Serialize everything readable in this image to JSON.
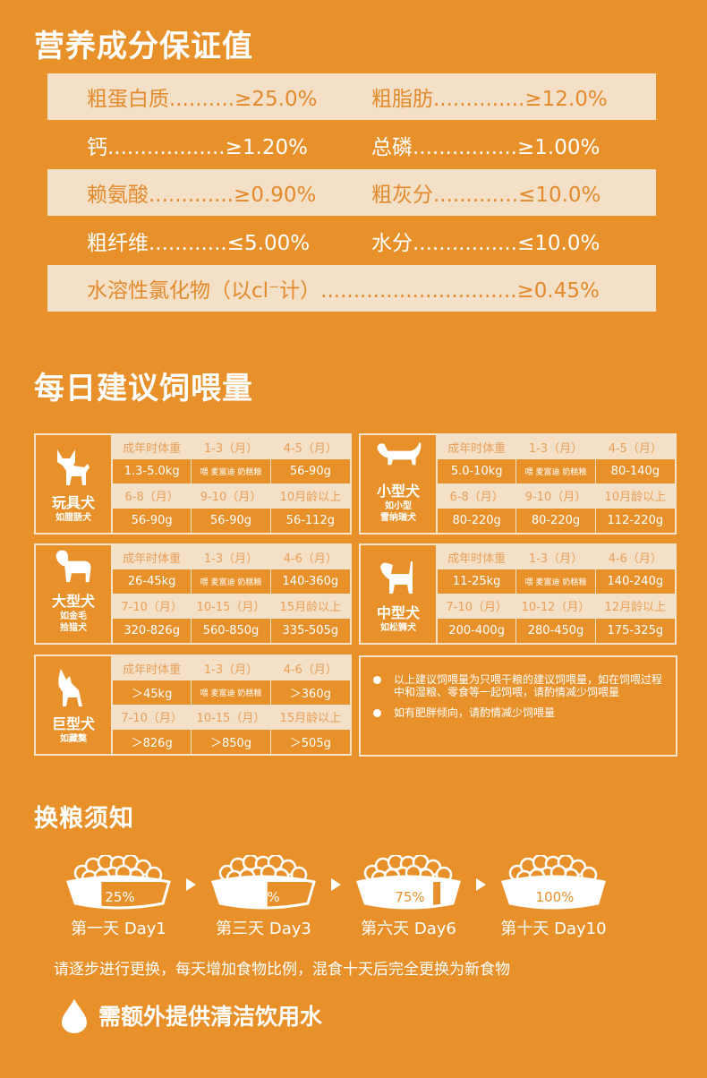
{
  "nutrition": {
    "title": "营养成分保证值",
    "rows": [
      {
        "style": "light",
        "cells": [
          "粗蛋白质..........≥25.0%",
          "粗脂肪..............≥12.0%"
        ]
      },
      {
        "style": "dark",
        "cells": [
          "钙..................≥1.20%",
          "总磷................≥1.00%"
        ]
      },
      {
        "style": "light",
        "cells": [
          "赖氨酸.............≥0.90%",
          "粗灰分.............≤10.0%"
        ]
      },
      {
        "style": "dark",
        "cells": [
          "粗纤维............≤5.00%",
          "水分................≤10.0%"
        ]
      },
      {
        "style": "light",
        "cells": [
          "水溶性氯化物（以cl⁻计）..............................≥0.45%"
        ]
      }
    ]
  },
  "feeding": {
    "title": "每日建议饲喂量",
    "brand_text": "喂 麦富迪 奶糕粮",
    "cards": [
      {
        "name": "玩具犬",
        "example": "如腊肠犬",
        "icon": "toy-dog-icon",
        "cells": [
          "成年时体重",
          "1-3（月）",
          "4-5（月）",
          "1.3-5.0kg",
          "BRAND",
          "56-90g",
          "6-8（月）",
          "9-10（月）",
          "10月龄以上",
          "56-90g",
          "56-90g",
          "56-112g"
        ]
      },
      {
        "name": "小型犬",
        "example": "如小型\n雪纳瑞犬",
        "icon": "dachshund-icon",
        "cells": [
          "成年时体重",
          "1-3（月）",
          "4-5（月）",
          "5.0-10kg",
          "BRAND",
          "80-140g",
          "6-8（月）",
          "9-10（月）",
          "10月龄以上",
          "80-220g",
          "80-220g",
          "112-220g"
        ]
      },
      {
        "name": "大型犬",
        "example": "如金毛\n拾猎犬",
        "icon": "large-dog-icon",
        "cells": [
          "成年时体重",
          "1-3（月）",
          "4-6（月）",
          "26-45kg",
          "BRAND",
          "140-360g",
          "7-10（月）",
          "10-15（月）",
          "15月龄以上",
          "320-826g",
          "560-850g",
          "335-505g"
        ]
      },
      {
        "name": "中型犬",
        "example": "如松狮犬",
        "icon": "medium-dog-icon",
        "cells": [
          "成年时体重",
          "1-3（月）",
          "4-6（月）",
          "11-25kg",
          "BRAND",
          "140-240g",
          "7-10（月）",
          "10-12（月）",
          "12月龄以上",
          "200-400g",
          "280-450g",
          "175-325g"
        ]
      },
      {
        "name": "巨型犬",
        "example": "如藏獒",
        "icon": "wolf-dog-icon",
        "cells": [
          "成年时体重",
          "1-3（月）",
          "4-6（月）",
          "＞45kg",
          "BRAND",
          "＞360g",
          "7-10（月）",
          "10-15（月）",
          "15月龄以上",
          "＞826g",
          "＞850g",
          "＞505g"
        ]
      }
    ],
    "notes": [
      "以上建议饲喂量为只喂干粮的建议饲喂量，如在饲喂过程中和湿粮、零食等一起饲喂，请酌情减少饲喂量",
      "如有肥胖倾向，请酌情减少饲喂量"
    ]
  },
  "switch": {
    "title": "换粮须知",
    "steps": [
      {
        "percent": 25,
        "percent_label": "25%",
        "label": "第一天 Day1"
      },
      {
        "percent": 50,
        "percent_label": "50%",
        "label": "第三天 Day3"
      },
      {
        "percent": 75,
        "percent_label": "75%",
        "label": "第六天 Day6"
      },
      {
        "percent": 100,
        "percent_label": "100%",
        "label": "第十天 Day10"
      }
    ],
    "tip": "请逐步进行更换，每天增加食物比例，混食十天后完全更换为新食物"
  },
  "water": {
    "text": "需额外提供清洁饮用水",
    "icon": "water-drop-icon"
  },
  "colors": {
    "background": "#e8912a",
    "light_row": "#f4e0c7",
    "accent_text": "#e28a2c"
  }
}
